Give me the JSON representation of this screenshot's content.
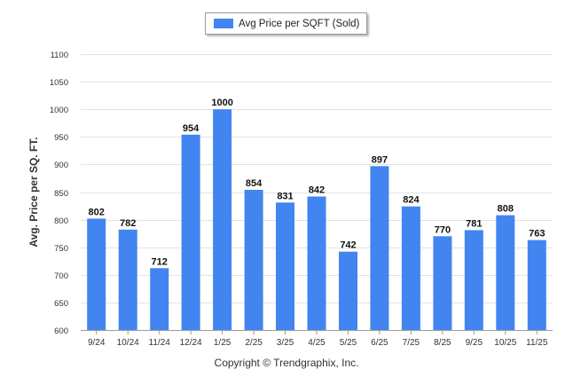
{
  "chart_data": {
    "type": "bar",
    "title": "",
    "xlabel": "",
    "ylabel": "Avg. Price per SQ. FT.",
    "ylim": [
      600,
      1100
    ],
    "yticks": [
      600,
      650,
      700,
      750,
      800,
      850,
      900,
      950,
      1000,
      1050,
      1100
    ],
    "categories": [
      "9/24",
      "10/24",
      "11/24",
      "12/24",
      "1/25",
      "2/25",
      "3/25",
      "4/25",
      "5/25",
      "6/25",
      "7/25",
      "8/25",
      "9/25",
      "10/25",
      "11/25"
    ],
    "series": [
      {
        "name": "Avg Price per SQFT (Sold)",
        "values": [
          802,
          782,
          712,
          954,
          1000,
          854,
          831,
          842,
          742,
          897,
          824,
          770,
          781,
          808,
          763
        ],
        "color": "#4285f0"
      }
    ],
    "grid": true,
    "legend": "top-center"
  },
  "footer": {
    "copyright": "Copyright © Trendgraphix, Inc."
  }
}
